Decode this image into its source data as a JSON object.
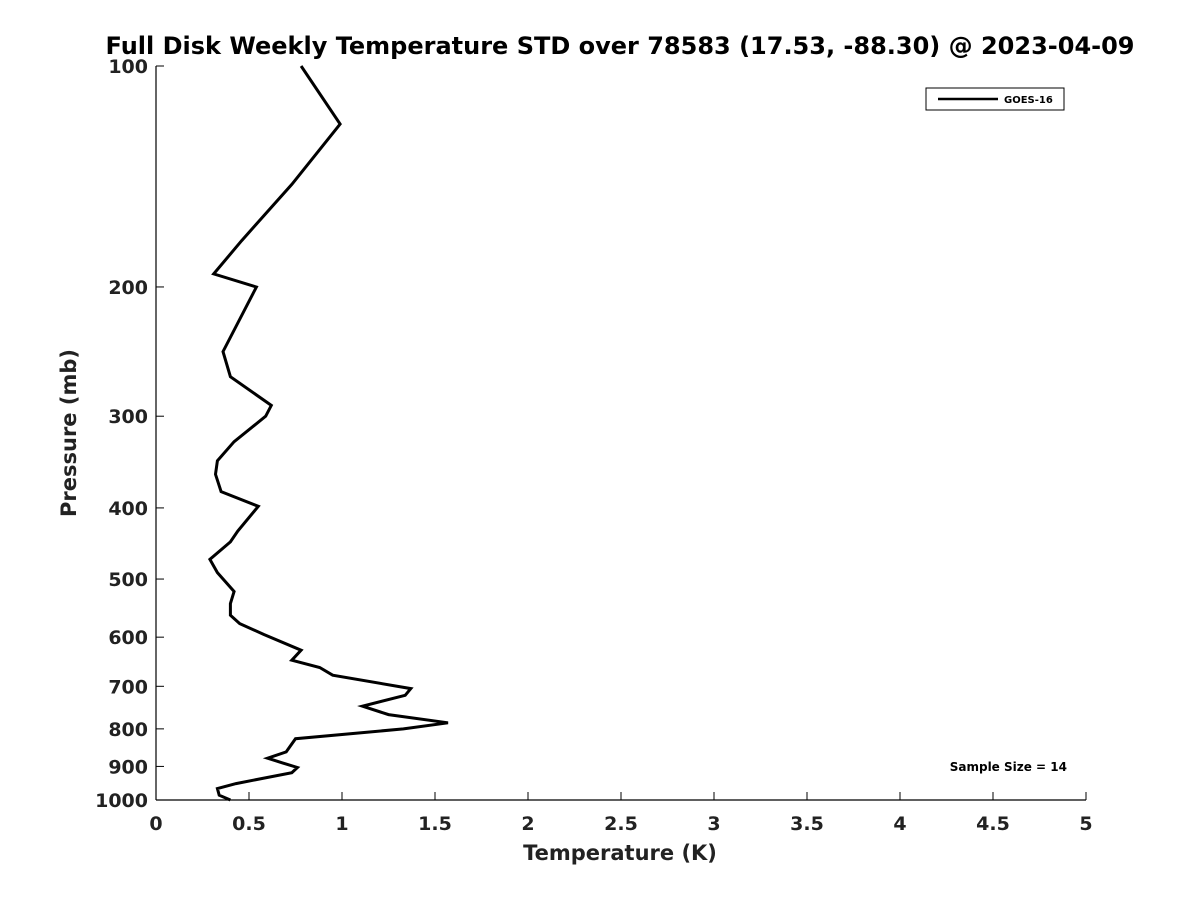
{
  "chart_data": {
    "type": "line",
    "title": "Full Disk Weekly Temperature STD over 78583 (17.53, -88.30) @ 2023-04-09",
    "xlabel": "Temperature (K)",
    "ylabel": "Pressure (mb)",
    "xlim": [
      0,
      5
    ],
    "ylim": [
      100,
      1000
    ],
    "y_scale": "log",
    "y_reversed": true,
    "x_ticks": [
      "0",
      "0.5",
      "1",
      "1.5",
      "2",
      "2.5",
      "3",
      "3.5",
      "4",
      "4.5",
      "5"
    ],
    "y_ticks": [
      "100",
      "200",
      "300",
      "400",
      "500",
      "600",
      "700",
      "800",
      "900",
      "1000"
    ],
    "grid": false,
    "legend": {
      "position": "top-right",
      "entries": [
        "GOES-16"
      ]
    },
    "annotation": "Sample Size = 14",
    "series": [
      {
        "name": "GOES-16",
        "color": "#000000",
        "points": [
          [
            0.78,
            100
          ],
          [
            0.99,
            120
          ],
          [
            0.73,
            145
          ],
          [
            0.46,
            173
          ],
          [
            0.31,
            192
          ],
          [
            0.54,
            200
          ],
          [
            0.36,
            245
          ],
          [
            0.4,
            265
          ],
          [
            0.62,
            290
          ],
          [
            0.59,
            300
          ],
          [
            0.42,
            325
          ],
          [
            0.33,
            345
          ],
          [
            0.32,
            360
          ],
          [
            0.35,
            380
          ],
          [
            0.55,
            398
          ],
          [
            0.44,
            430
          ],
          [
            0.4,
            445
          ],
          [
            0.29,
            470
          ],
          [
            0.33,
            490
          ],
          [
            0.42,
            520
          ],
          [
            0.4,
            540
          ],
          [
            0.4,
            560
          ],
          [
            0.45,
            575
          ],
          [
            0.58,
            595
          ],
          [
            0.78,
            625
          ],
          [
            0.73,
            645
          ],
          [
            0.88,
            660
          ],
          [
            0.95,
            676
          ],
          [
            1.37,
            705
          ],
          [
            1.34,
            720
          ],
          [
            1.11,
            745
          ],
          [
            1.25,
            765
          ],
          [
            1.57,
            785
          ],
          [
            1.33,
            800
          ],
          [
            0.75,
            825
          ],
          [
            0.7,
            860
          ],
          [
            0.6,
            877
          ],
          [
            0.68,
            890
          ],
          [
            0.76,
            903
          ],
          [
            0.73,
            918
          ],
          [
            0.43,
            950
          ],
          [
            0.33,
            965
          ],
          [
            0.34,
            985
          ],
          [
            0.4,
            1000
          ]
        ]
      }
    ]
  }
}
